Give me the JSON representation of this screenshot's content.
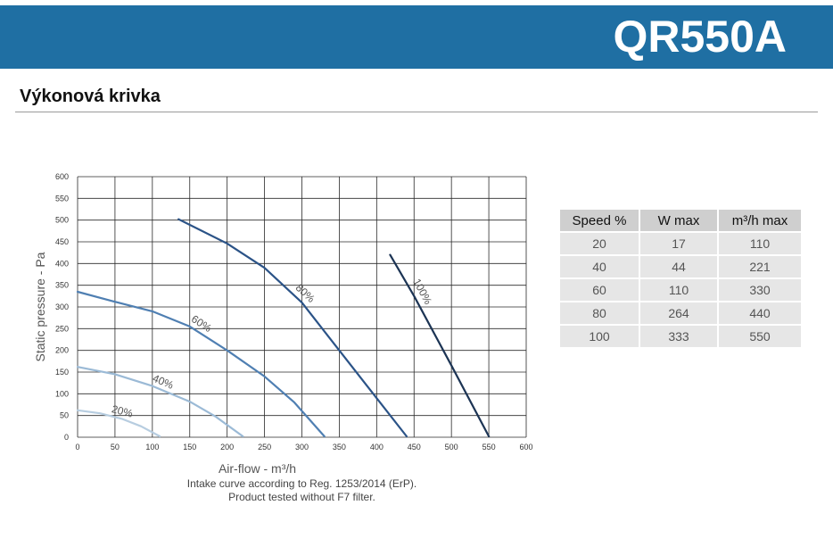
{
  "header": {
    "model": "QR550A",
    "accent_color": "#1f6fa3"
  },
  "section": {
    "title": "Výkonová krivka"
  },
  "chart_data": {
    "type": "line",
    "xlabel": "Air-flow - m³/h",
    "ylabel": "Static pressure - Pa",
    "xlim": [
      0,
      600
    ],
    "ylim": [
      0,
      600
    ],
    "xticks": [
      "0",
      "50",
      "100",
      "150",
      "200",
      "250",
      "300",
      "350",
      "400",
      "450",
      "500",
      "550",
      "600"
    ],
    "yticks": [
      "0",
      "50",
      "100",
      "150",
      "200",
      "250",
      "300",
      "350",
      "400",
      "450",
      "500",
      "550",
      "600"
    ],
    "grid": true,
    "series": [
      {
        "name": "20%",
        "color": "#b7cde0",
        "points": [
          [
            0,
            62
          ],
          [
            30,
            55
          ],
          [
            60,
            42
          ],
          [
            85,
            25
          ],
          [
            110,
            2
          ]
        ]
      },
      {
        "name": "40%",
        "color": "#9bbad6",
        "points": [
          [
            0,
            162
          ],
          [
            50,
            145
          ],
          [
            100,
            118
          ],
          [
            150,
            82
          ],
          [
            185,
            47
          ],
          [
            221,
            2
          ]
        ]
      },
      {
        "name": "60%",
        "color": "#4f7fb2",
        "points": [
          [
            0,
            335
          ],
          [
            50,
            312
          ],
          [
            100,
            290
          ],
          [
            150,
            255
          ],
          [
            200,
            200
          ],
          [
            250,
            140
          ],
          [
            290,
            80
          ],
          [
            330,
            2
          ]
        ]
      },
      {
        "name": "80%",
        "color": "#2b5387",
        "points": [
          [
            135,
            502
          ],
          [
            200,
            446
          ],
          [
            250,
            390
          ],
          [
            300,
            310
          ],
          [
            350,
            200
          ],
          [
            400,
            90
          ],
          [
            440,
            2
          ]
        ]
      },
      {
        "name": "100%",
        "color": "#1c3454",
        "points": [
          [
            418,
            420
          ],
          [
            450,
            325
          ],
          [
            500,
            165
          ],
          [
            550,
            2
          ]
        ]
      }
    ]
  },
  "footnote": {
    "line1": "Intake curve according to Reg. 1253/2014 (ErP).",
    "line2": "Product tested without F7 filter."
  },
  "specs_table": {
    "headers": [
      "Speed %",
      "W max",
      "m³/h max"
    ],
    "rows": [
      [
        "20",
        "17",
        "110"
      ],
      [
        "40",
        "44",
        "221"
      ],
      [
        "60",
        "110",
        "330"
      ],
      [
        "80",
        "264",
        "440"
      ],
      [
        "100",
        "333",
        "550"
      ]
    ]
  }
}
